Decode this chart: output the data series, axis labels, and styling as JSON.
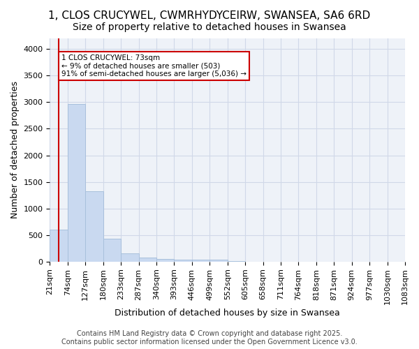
{
  "title1": "1, CLOS CRUCYWEL, CWMRHYDYCEIRW, SWANSEA, SA6 6RD",
  "title2": "Size of property relative to detached houses in Swansea",
  "xlabel": "Distribution of detached houses by size in Swansea",
  "ylabel": "Number of detached properties",
  "tick_labels": [
    "21sqm",
    "74sqm",
    "127sqm",
    "180sqm",
    "233sqm",
    "287sqm",
    "340sqm",
    "393sqm",
    "446sqm",
    "499sqm",
    "552sqm",
    "605sqm",
    "658sqm",
    "711sqm",
    "764sqm",
    "818sqm",
    "871sqm",
    "924sqm",
    "977sqm",
    "1030sqm",
    "1083sqm"
  ],
  "bar_values": [
    600,
    2970,
    1330,
    430,
    160,
    75,
    55,
    40,
    35,
    35,
    8,
    4,
    3,
    2,
    1,
    1,
    1,
    0,
    0,
    0
  ],
  "bar_color": "#c9d9f0",
  "bar_edge_color": "#a8c0dc",
  "grid_color": "#d0d8e8",
  "background_color": "#eef2f8",
  "vline_color": "#cc0000",
  "vline_position": 0.5,
  "annotation_text": "1 CLOS CRUCYWEL: 73sqm\n← 9% of detached houses are smaller (503)\n91% of semi-detached houses are larger (5,036) →",
  "ylim": [
    0,
    4200
  ],
  "yticks": [
    0,
    500,
    1000,
    1500,
    2000,
    2500,
    3000,
    3500,
    4000
  ],
  "footer": "Contains HM Land Registry data © Crown copyright and database right 2025.\nContains public sector information licensed under the Open Government Licence v3.0.",
  "title1_fontsize": 11,
  "title2_fontsize": 10,
  "xlabel_fontsize": 9,
  "ylabel_fontsize": 9,
  "tick_fontsize": 8,
  "footer_fontsize": 7
}
